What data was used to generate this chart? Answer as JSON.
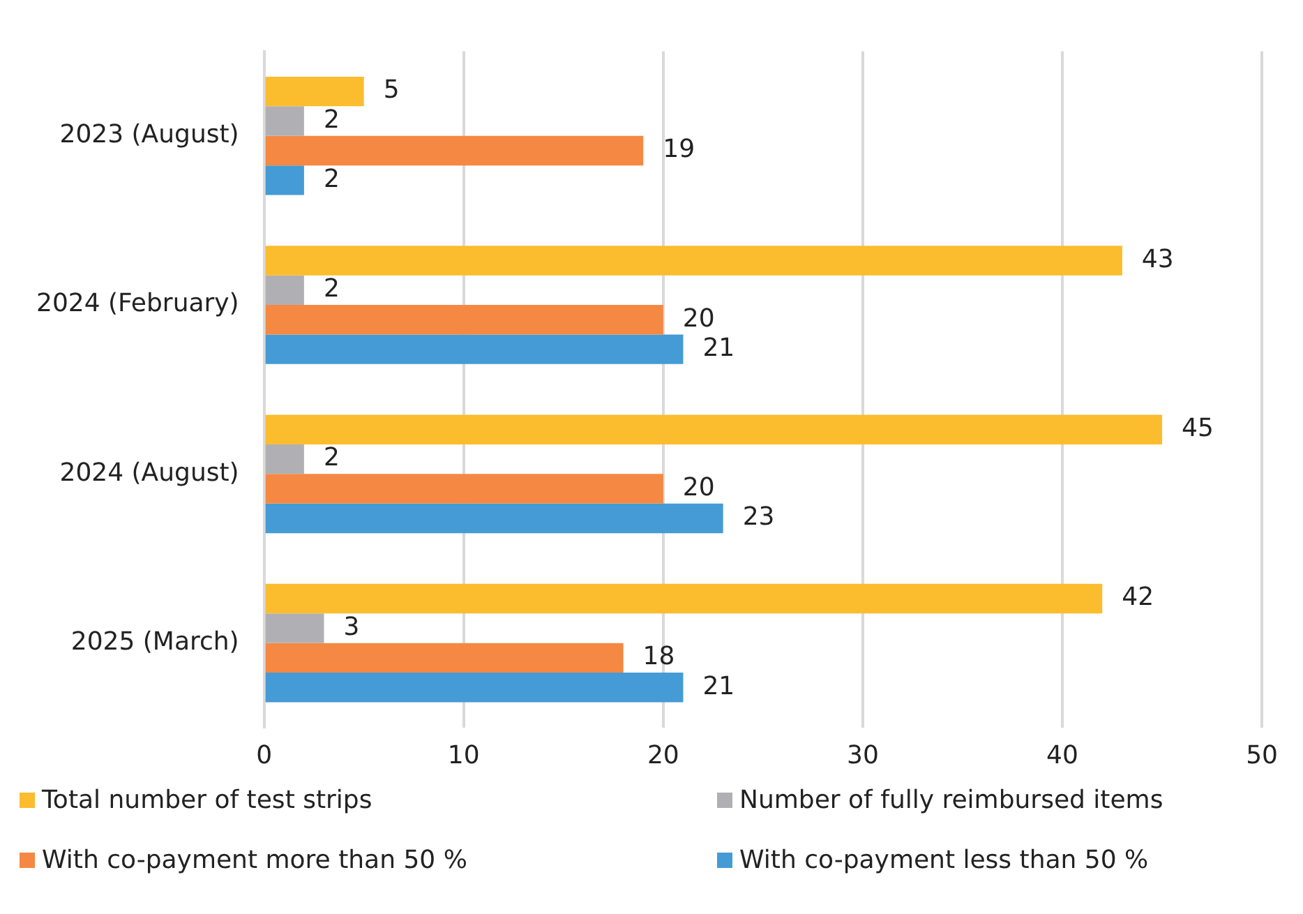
{
  "chart_data": {
    "type": "bar",
    "orientation": "horizontal",
    "categories": [
      "2023 (August)",
      "2024 (February)",
      "2024 (August)",
      "2025 (March)"
    ],
    "series": [
      {
        "name": "Total number of test strips",
        "color": "#fbbc2e",
        "values": [
          5,
          43,
          45,
          42
        ]
      },
      {
        "name": "Number of fully reimbursed items",
        "color": "#b0b0b4",
        "values": [
          2,
          2,
          2,
          3
        ]
      },
      {
        "name": "With co-payment more than 50 %",
        "color": "#f58842",
        "values": [
          19,
          20,
          20,
          18
        ]
      },
      {
        "name": "With co-payment less than 50 %",
        "color": "#449bd5",
        "values": [
          2,
          21,
          23,
          21
        ]
      }
    ],
    "xlim": [
      0,
      50
    ],
    "xticks": [
      0,
      10,
      20,
      30,
      40,
      50
    ],
    "grid": "x",
    "legend": "bottom",
    "data_labels": true
  }
}
